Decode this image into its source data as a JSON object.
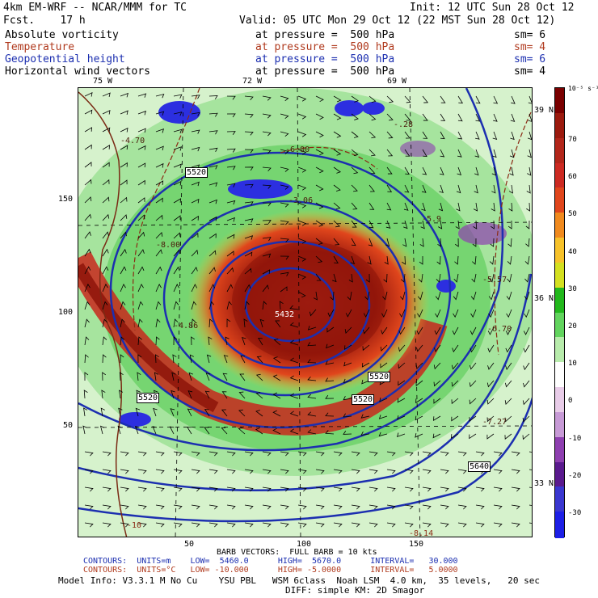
{
  "header": {
    "model": "4km EM-WRF -- NCAR/MMM for TC",
    "init": "Init: 12 UTC Sun 28 Oct 12",
    "fcst": "Fcst.    17 h",
    "valid": "Valid: 05 UTC Mon 29 Oct 12 (22 MST Sun 28 Oct 12)"
  },
  "fields": [
    {
      "name": "Absolute vorticity",
      "level": "at pressure =  500 hPa",
      "sm": "sm= 6",
      "color": "#000000"
    },
    {
      "name": "Temperature",
      "level": "at pressure =  500 hPa",
      "sm": "sm= 4",
      "color": "#b03a1e"
    },
    {
      "name": "Geopotential height",
      "level": "at pressure =  500 hPa",
      "sm": "sm= 6",
      "color": "#1c2fb0"
    },
    {
      "name": "Horizontal wind vectors",
      "level": "at pressure =  500 hPa",
      "sm": "sm= 4",
      "color": "#000000"
    }
  ],
  "map": {
    "lon_labels": [
      "75 W",
      "72 W",
      "69 W"
    ],
    "lat_labels": [
      "39 N",
      "36 N",
      "33 N"
    ],
    "y_ticks": [
      "150",
      "100",
      "50"
    ],
    "x_ticks": [
      "50",
      "100",
      "150"
    ],
    "height_labels": [
      "5520",
      "5520",
      "5520",
      "5520",
      "5640",
      "5432"
    ],
    "temp_labels": [
      "-6.00",
      "-3.06",
      "-8.00",
      "-4.86",
      "-10",
      "-5.57",
      "-6.70",
      "-7.27",
      "-8.14",
      "-.28",
      "-4.70",
      "-5.9"
    ],
    "colors": {
      "height_contour": "#1c2fb0",
      "temp_contour": "#8b2a14",
      "map_bg": "#eaf7e5"
    }
  },
  "colorbar": {
    "unit": "10⁻⁵ s⁻¹",
    "labels": [
      "70",
      "60",
      "50",
      "40",
      "30",
      "20",
      "10",
      "0",
      "-10",
      "-20",
      "-30"
    ],
    "colors": [
      "#7a0000",
      "#9b1a0e",
      "#b2261a",
      "#cc2a22",
      "#e0461c",
      "#f08a1e",
      "#f7c22a",
      "#d4e020",
      "#22b81c",
      "#62d45e",
      "#b8ecac",
      "#ffffff",
      "#e8cce8",
      "#c79ad6",
      "#8e3fb0",
      "#5a1a8e",
      "#3a37d0",
      "#1d1fe6"
    ]
  },
  "footer": {
    "barb": "BARB VECTORS:  FULL BARB = 10 kts",
    "contours1": "CONTOURS:  UNITS=m    LOW=  5460.0      HIGH=  5670.0      INTERVAL=   30.000",
    "contours2": "CONTOURS:  UNITS=°C   LOW= -10.000      HIGH= -5.0000      INTERVAL=   5.0000",
    "model_info": "Model Info: V3.3.1 M No Cu    YSU PBL   WSM 6class  Noah LSM  4.0 km,  35 levels,   20 sec",
    "diff": "DIFF: simple KM: 2D Smagor"
  }
}
